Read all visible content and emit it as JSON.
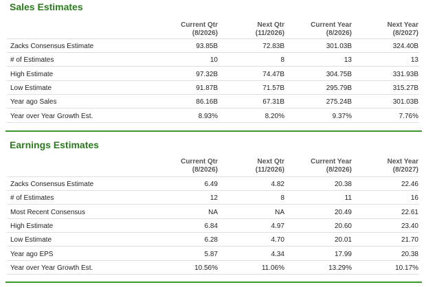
{
  "sales": {
    "title": "Sales Estimates",
    "columns": [
      {
        "l1": "Current Qtr",
        "l2": "(8/2026)"
      },
      {
        "l1": "Next Qtr",
        "l2": "(11/2026)"
      },
      {
        "l1": "Current Year",
        "l2": "(8/2026)"
      },
      {
        "l1": "Next Year",
        "l2": "(8/2027)"
      }
    ],
    "rows": [
      {
        "label": "Zacks Consensus Estimate",
        "values": [
          "93.85B",
          "72.83B",
          "301.03B",
          "324.40B"
        ]
      },
      {
        "label": "# of Estimates",
        "values": [
          "10",
          "8",
          "13",
          "13"
        ]
      },
      {
        "label": "High Estimate",
        "values": [
          "97.32B",
          "74.47B",
          "304.75B",
          "331.93B"
        ]
      },
      {
        "label": "Low Estimate",
        "values": [
          "91.87B",
          "71.57B",
          "295.79B",
          "315.27B"
        ]
      },
      {
        "label": "Year ago Sales",
        "values": [
          "86.16B",
          "67.31B",
          "275.24B",
          "301.03B"
        ]
      },
      {
        "label": "Year over Year Growth Est.",
        "values": [
          "8.93%",
          "8.20%",
          "9.37%",
          "7.76%"
        ]
      }
    ]
  },
  "earnings": {
    "title": "Earnings Estimates",
    "columns": [
      {
        "l1": "Current Qtr",
        "l2": "(8/2026)"
      },
      {
        "l1": "Next Qtr",
        "l2": "(11/2026)"
      },
      {
        "l1": "Current Year",
        "l2": "(8/2026)"
      },
      {
        "l1": "Next Year",
        "l2": "(8/2027)"
      }
    ],
    "rows": [
      {
        "label": "Zacks Consensus Estimate",
        "values": [
          "6.49",
          "4.82",
          "20.38",
          "22.46"
        ]
      },
      {
        "label": "# of Estimates",
        "values": [
          "12",
          "8",
          "11",
          "16"
        ]
      },
      {
        "label": "Most Recent Consensus",
        "values": [
          "NA",
          "NA",
          "20.49",
          "22.61"
        ]
      },
      {
        "label": "High Estimate",
        "values": [
          "6.84",
          "4.97",
          "20.60",
          "23.40"
        ]
      },
      {
        "label": "Low Estimate",
        "values": [
          "6.28",
          "4.70",
          "20.01",
          "21.70"
        ]
      },
      {
        "label": "Year ago EPS",
        "values": [
          "5.87",
          "4.34",
          "17.99",
          "20.38"
        ]
      },
      {
        "label": "Year over Year Growth Est.",
        "values": [
          "10.56%",
          "11.06%",
          "13.29%",
          "10.17%"
        ]
      }
    ]
  }
}
